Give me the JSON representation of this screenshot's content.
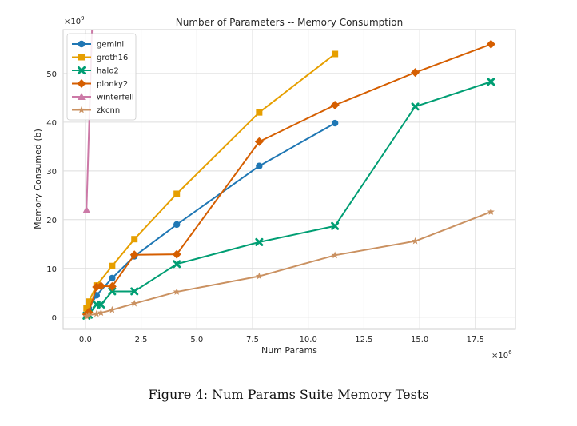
{
  "chart_data": {
    "type": "line",
    "title": "Number of Parameters -- Memory Consumption",
    "xlabel": "Num Params",
    "ylabel": "Memory Consumed (b)",
    "x_multiplier_label": "×10",
    "x_multiplier_exp": "6",
    "y_multiplier_label": "×10",
    "y_multiplier_exp": "9",
    "xlim": [
      -1.0,
      19.3
    ],
    "ylim": [
      -2.5,
      59
    ],
    "x_ticks": [
      0.0,
      2.5,
      5.0,
      7.5,
      10.0,
      12.5,
      15.0,
      17.5
    ],
    "x_tick_labels": [
      "0.0",
      "2.5",
      "5.0",
      "7.5",
      "10.0",
      "12.5",
      "15.0",
      "17.5"
    ],
    "y_ticks": [
      0,
      10,
      20,
      30,
      40,
      50
    ],
    "y_tick_labels": [
      "0",
      "10",
      "20",
      "30",
      "40",
      "50"
    ],
    "grid": true,
    "legend_position": "top-left",
    "series": [
      {
        "name": "gemini",
        "color": "#1f77b4",
        "marker": "circle",
        "x": [
          0.05,
          0.15,
          0.5,
          1.2,
          2.2,
          4.1,
          7.8,
          11.2
        ],
        "y": [
          0.5,
          1.8,
          4.5,
          8.0,
          12.5,
          19.0,
          31.0,
          39.8
        ]
      },
      {
        "name": "groth16",
        "color": "#e69f00",
        "marker": "square",
        "x": [
          0.05,
          0.15,
          0.5,
          1.2,
          2.2,
          4.1,
          7.8,
          11.2
        ],
        "y": [
          1.8,
          3.2,
          6.5,
          10.5,
          16.0,
          25.3,
          42.0,
          54.0
        ]
      },
      {
        "name": "halo2",
        "color": "#009e73",
        "marker": "x",
        "x": [
          0.05,
          0.15,
          0.5,
          0.7,
          1.2,
          2.2,
          4.1,
          7.8,
          11.2,
          14.8,
          18.2
        ],
        "y": [
          0.3,
          0.5,
          2.6,
          2.6,
          5.3,
          5.3,
          10.9,
          15.4,
          18.7,
          43.2,
          48.3
        ]
      },
      {
        "name": "plonky2",
        "color": "#d55e00",
        "marker": "diamond",
        "x": [
          0.05,
          0.15,
          0.5,
          0.7,
          1.2,
          2.2,
          4.1,
          7.8,
          11.2,
          14.8,
          18.2
        ],
        "y": [
          0.6,
          1.0,
          6.2,
          6.4,
          6.3,
          12.8,
          12.9,
          36.0,
          43.5,
          50.2,
          56.0
        ]
      },
      {
        "name": "winterfell",
        "color": "#cc79a7",
        "marker": "triangle",
        "x": [
          0.05,
          0.3
        ],
        "y": [
          22.0,
          59.5
        ]
      },
      {
        "name": "zkcnn",
        "color": "#ca9161",
        "marker": "star",
        "x": [
          0.05,
          0.15,
          0.5,
          0.7,
          1.2,
          2.2,
          4.1,
          7.8,
          11.2,
          14.8,
          18.2
        ],
        "y": [
          0.2,
          0.4,
          0.7,
          0.9,
          1.5,
          2.8,
          5.2,
          8.4,
          12.7,
          15.6,
          21.6
        ]
      }
    ]
  },
  "caption": "Figure 4: Num Params Suite Memory Tests"
}
